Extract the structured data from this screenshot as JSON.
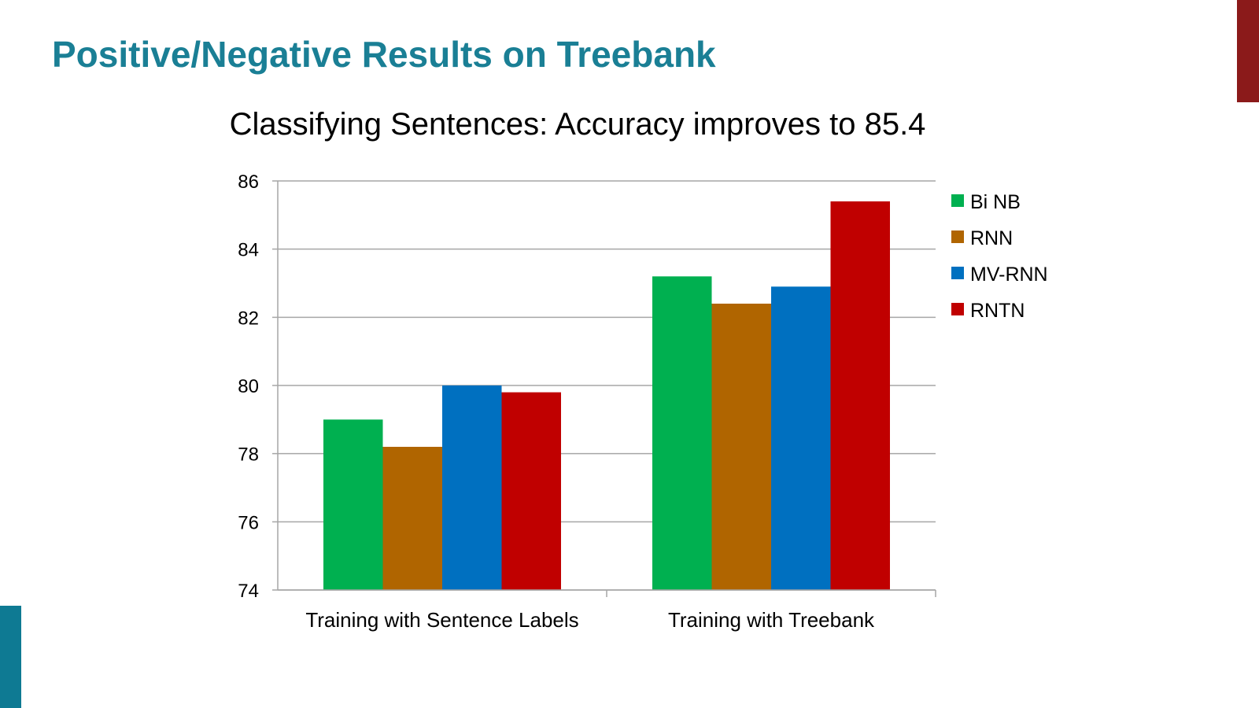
{
  "slide": {
    "title": "Positive/Negative Results on Treebank"
  },
  "colors": {
    "title": "#1a7f95",
    "accent_red": "#8b1a1a",
    "accent_teal": "#0e7a93",
    "gridline": "#a6a6a6"
  },
  "chart_data": {
    "type": "bar",
    "title": "Classifying Sentences: Accuracy improves to 85.4",
    "xlabel": "",
    "ylabel": "",
    "categories": [
      "Training with Sentence Labels",
      "Training with Treebank"
    ],
    "series": [
      {
        "name": "Bi NB",
        "values": [
          79.0,
          83.2
        ],
        "color": "#00b050"
      },
      {
        "name": "RNN",
        "values": [
          78.2,
          82.4
        ],
        "color": "#b06500"
      },
      {
        "name": "MV-RNN",
        "values": [
          80.0,
          82.9
        ],
        "color": "#0070c0"
      },
      {
        "name": "RNTN",
        "values": [
          79.8,
          85.4
        ],
        "color": "#c00000"
      }
    ],
    "ylim": [
      74,
      86
    ],
    "yticks": [
      74,
      76,
      78,
      80,
      82,
      84,
      86
    ],
    "grid": true,
    "legend": "right"
  }
}
